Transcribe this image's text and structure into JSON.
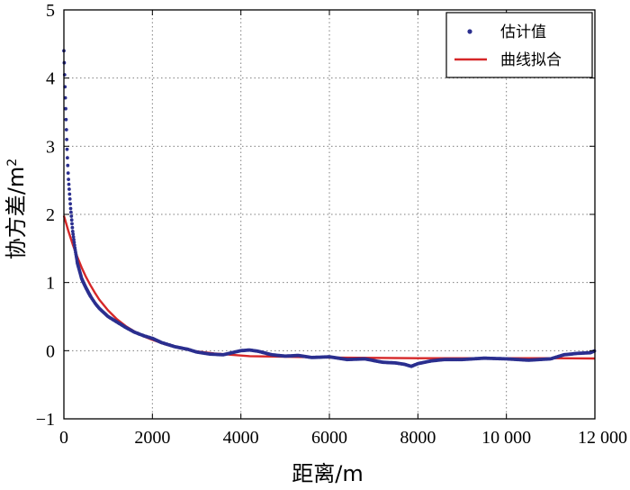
{
  "chart_data": {
    "type": "line",
    "xlabel": "距离/m",
    "ylabel": "协方差/m",
    "ylabel_sup": "2",
    "xlim": [
      0,
      12000
    ],
    "ylim": [
      -1,
      5
    ],
    "xticks": [
      0,
      2000,
      4000,
      6000,
      8000,
      10000,
      12000
    ],
    "xtick_labels": [
      "0",
      "2000",
      "4000",
      "6000",
      "8000",
      "10 000",
      "12 000"
    ],
    "yticks": [
      -1,
      0,
      1,
      2,
      3,
      4,
      5
    ],
    "ytick_labels": [
      "−1",
      "0",
      "1",
      "2",
      "3",
      "4",
      "5"
    ],
    "grid": true,
    "legend_position": "top-right",
    "colors": {
      "estimate": "#2b2f8f",
      "fit": "#d62728"
    },
    "series": [
      {
        "name": "估计值",
        "style": "dots",
        "x": [
          0,
          25,
          50,
          75,
          100,
          150,
          200,
          250,
          300,
          400,
          500,
          600,
          700,
          800,
          1000,
          1200,
          1400,
          1600,
          1800,
          2000,
          2200,
          2500,
          2800,
          3000,
          3300,
          3600,
          3800,
          4000,
          4200,
          4400,
          4700,
          5000,
          5300,
          5600,
          6000,
          6400,
          6800,
          7200,
          7500,
          7700,
          7850,
          8000,
          8300,
          8600,
          9000,
          9500,
          10000,
          10500,
          11000,
          11300,
          11600,
          11900,
          12000
        ],
        "y": [
          4.4,
          3.85,
          3.35,
          2.9,
          2.55,
          2.1,
          1.75,
          1.5,
          1.3,
          1.06,
          0.92,
          0.8,
          0.7,
          0.62,
          0.5,
          0.42,
          0.34,
          0.27,
          0.22,
          0.18,
          0.12,
          0.06,
          0.02,
          -0.02,
          -0.05,
          -0.06,
          -0.03,
          0.0,
          0.01,
          -0.01,
          -0.06,
          -0.08,
          -0.07,
          -0.1,
          -0.09,
          -0.13,
          -0.12,
          -0.17,
          -0.18,
          -0.2,
          -0.23,
          -0.19,
          -0.15,
          -0.13,
          -0.13,
          -0.11,
          -0.12,
          -0.14,
          -0.12,
          -0.06,
          -0.04,
          -0.03,
          0.0
        ]
      },
      {
        "name": "曲线拟合",
        "style": "line",
        "x": [
          0,
          100,
          200,
          300,
          400,
          500,
          600,
          700,
          800,
          1000,
          1200,
          1400,
          1600,
          1800,
          2000,
          2300,
          2600,
          3000,
          3400,
          3800,
          4200,
          5000,
          6000,
          7000,
          8000,
          9000,
          10000,
          11000,
          12000
        ],
        "y": [
          1.98,
          1.76,
          1.56,
          1.38,
          1.22,
          1.08,
          0.96,
          0.85,
          0.75,
          0.59,
          0.46,
          0.36,
          0.28,
          0.21,
          0.16,
          0.09,
          0.04,
          -0.01,
          -0.04,
          -0.06,
          -0.08,
          -0.09,
          -0.1,
          -0.105,
          -0.11,
          -0.11,
          -0.11,
          -0.11,
          -0.115
        ]
      }
    ]
  }
}
